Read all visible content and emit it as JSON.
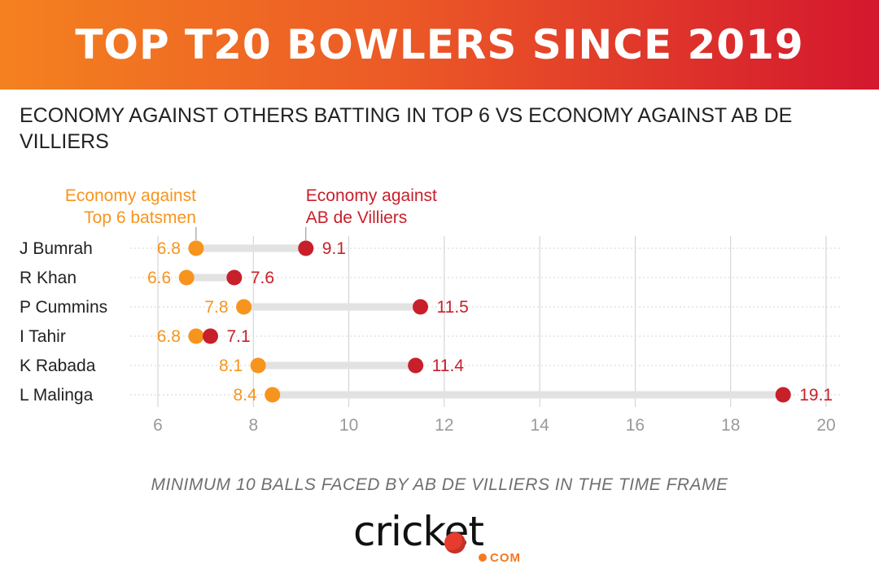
{
  "header": {
    "title": "TOP T20 BOWLERS SINCE 2019"
  },
  "subtitle": "ECONOMY AGAINST OTHERS BATTING IN TOP 6 VS ECONOMY AGAINST AB DE VILLIERS",
  "footnote": "MINIMUM 10 BALLS FACED BY AB DE VILLIERS IN THE TIME FRAME",
  "logo": {
    "word": "cricket",
    "suffix": "COM"
  },
  "colors": {
    "top6": "#f7941d",
    "abd": "#c8202a",
    "connector": "#e2e2e2",
    "grid": "#cfcfcf",
    "tick": "#9a9a9a",
    "label": "#222222"
  },
  "chart_data": {
    "type": "dumbbell",
    "categories": [
      "J Bumrah",
      "R Khan",
      "P Cummins",
      "I Tahir",
      "K Rabada",
      "L Malinga"
    ],
    "series": [
      {
        "name": [
          "Economy against",
          "Top 6 batsmen"
        ],
        "values": [
          6.8,
          6.6,
          7.8,
          6.8,
          8.1,
          8.4
        ]
      },
      {
        "name": [
          "Economy against",
          "AB de Villiers"
        ],
        "values": [
          9.1,
          7.6,
          11.5,
          7.1,
          11.4,
          19.1
        ]
      }
    ],
    "xlim": [
      6,
      20
    ],
    "xticks": [
      6,
      8,
      10,
      12,
      14,
      16,
      18,
      20
    ],
    "grid": true,
    "legend": "annotations above first row"
  }
}
